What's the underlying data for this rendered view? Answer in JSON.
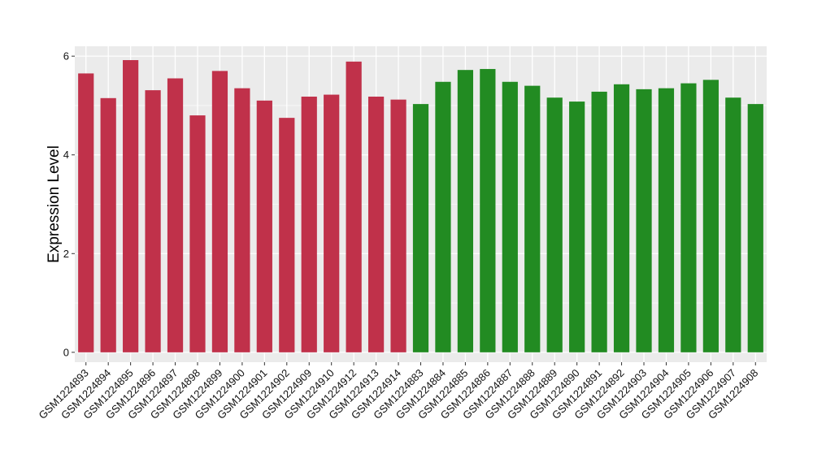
{
  "chart_data": {
    "type": "bar",
    "title": "",
    "xlabel": "",
    "ylabel": "Expression Level",
    "ylim": [
      -0.2,
      6.2
    ],
    "yticks": [
      0,
      2,
      4,
      6
    ],
    "grid": true,
    "legend": "none",
    "background_color": "#EBEBEB",
    "grid_color": "#FFFFFF",
    "categories": [
      "GSM1224893",
      "GSM1224894",
      "GSM1224895",
      "GSM1224896",
      "GSM1224897",
      "GSM1224898",
      "GSM1224899",
      "GSM1224900",
      "GSM1224901",
      "GSM1224902",
      "GSM1224909",
      "GSM1224910",
      "GSM1224912",
      "GSM1224913",
      "GSM1224914",
      "GSM1224883",
      "GSM1224884",
      "GSM1224885",
      "GSM1224886",
      "GSM1224887",
      "GSM1224888",
      "GSM1224889",
      "GSM1224890",
      "GSM1224891",
      "GSM1224892",
      "GSM1224903",
      "GSM1224904",
      "GSM1224905",
      "GSM1224906",
      "GSM1224907",
      "GSM1224908"
    ],
    "values": [
      5.65,
      5.15,
      5.92,
      5.31,
      5.55,
      4.8,
      5.7,
      5.35,
      5.1,
      4.75,
      5.18,
      5.22,
      5.89,
      5.18,
      5.12,
      5.03,
      5.48,
      5.72,
      5.74,
      5.48,
      5.4,
      5.16,
      5.08,
      5.28,
      5.43,
      5.33,
      5.35,
      5.45,
      5.52,
      5.16,
      5.03
    ],
    "colors": [
      "#C0314A",
      "#C0314A",
      "#C0314A",
      "#C0314A",
      "#C0314A",
      "#C0314A",
      "#C0314A",
      "#C0314A",
      "#C0314A",
      "#C0314A",
      "#C0314A",
      "#C0314A",
      "#C0314A",
      "#C0314A",
      "#C0314A",
      "#228B22",
      "#228B22",
      "#228B22",
      "#228B22",
      "#228B22",
      "#228B22",
      "#228B22",
      "#228B22",
      "#228B22",
      "#228B22",
      "#228B22",
      "#228B22",
      "#228B22",
      "#228B22",
      "#228B22",
      "#228B22"
    ]
  }
}
